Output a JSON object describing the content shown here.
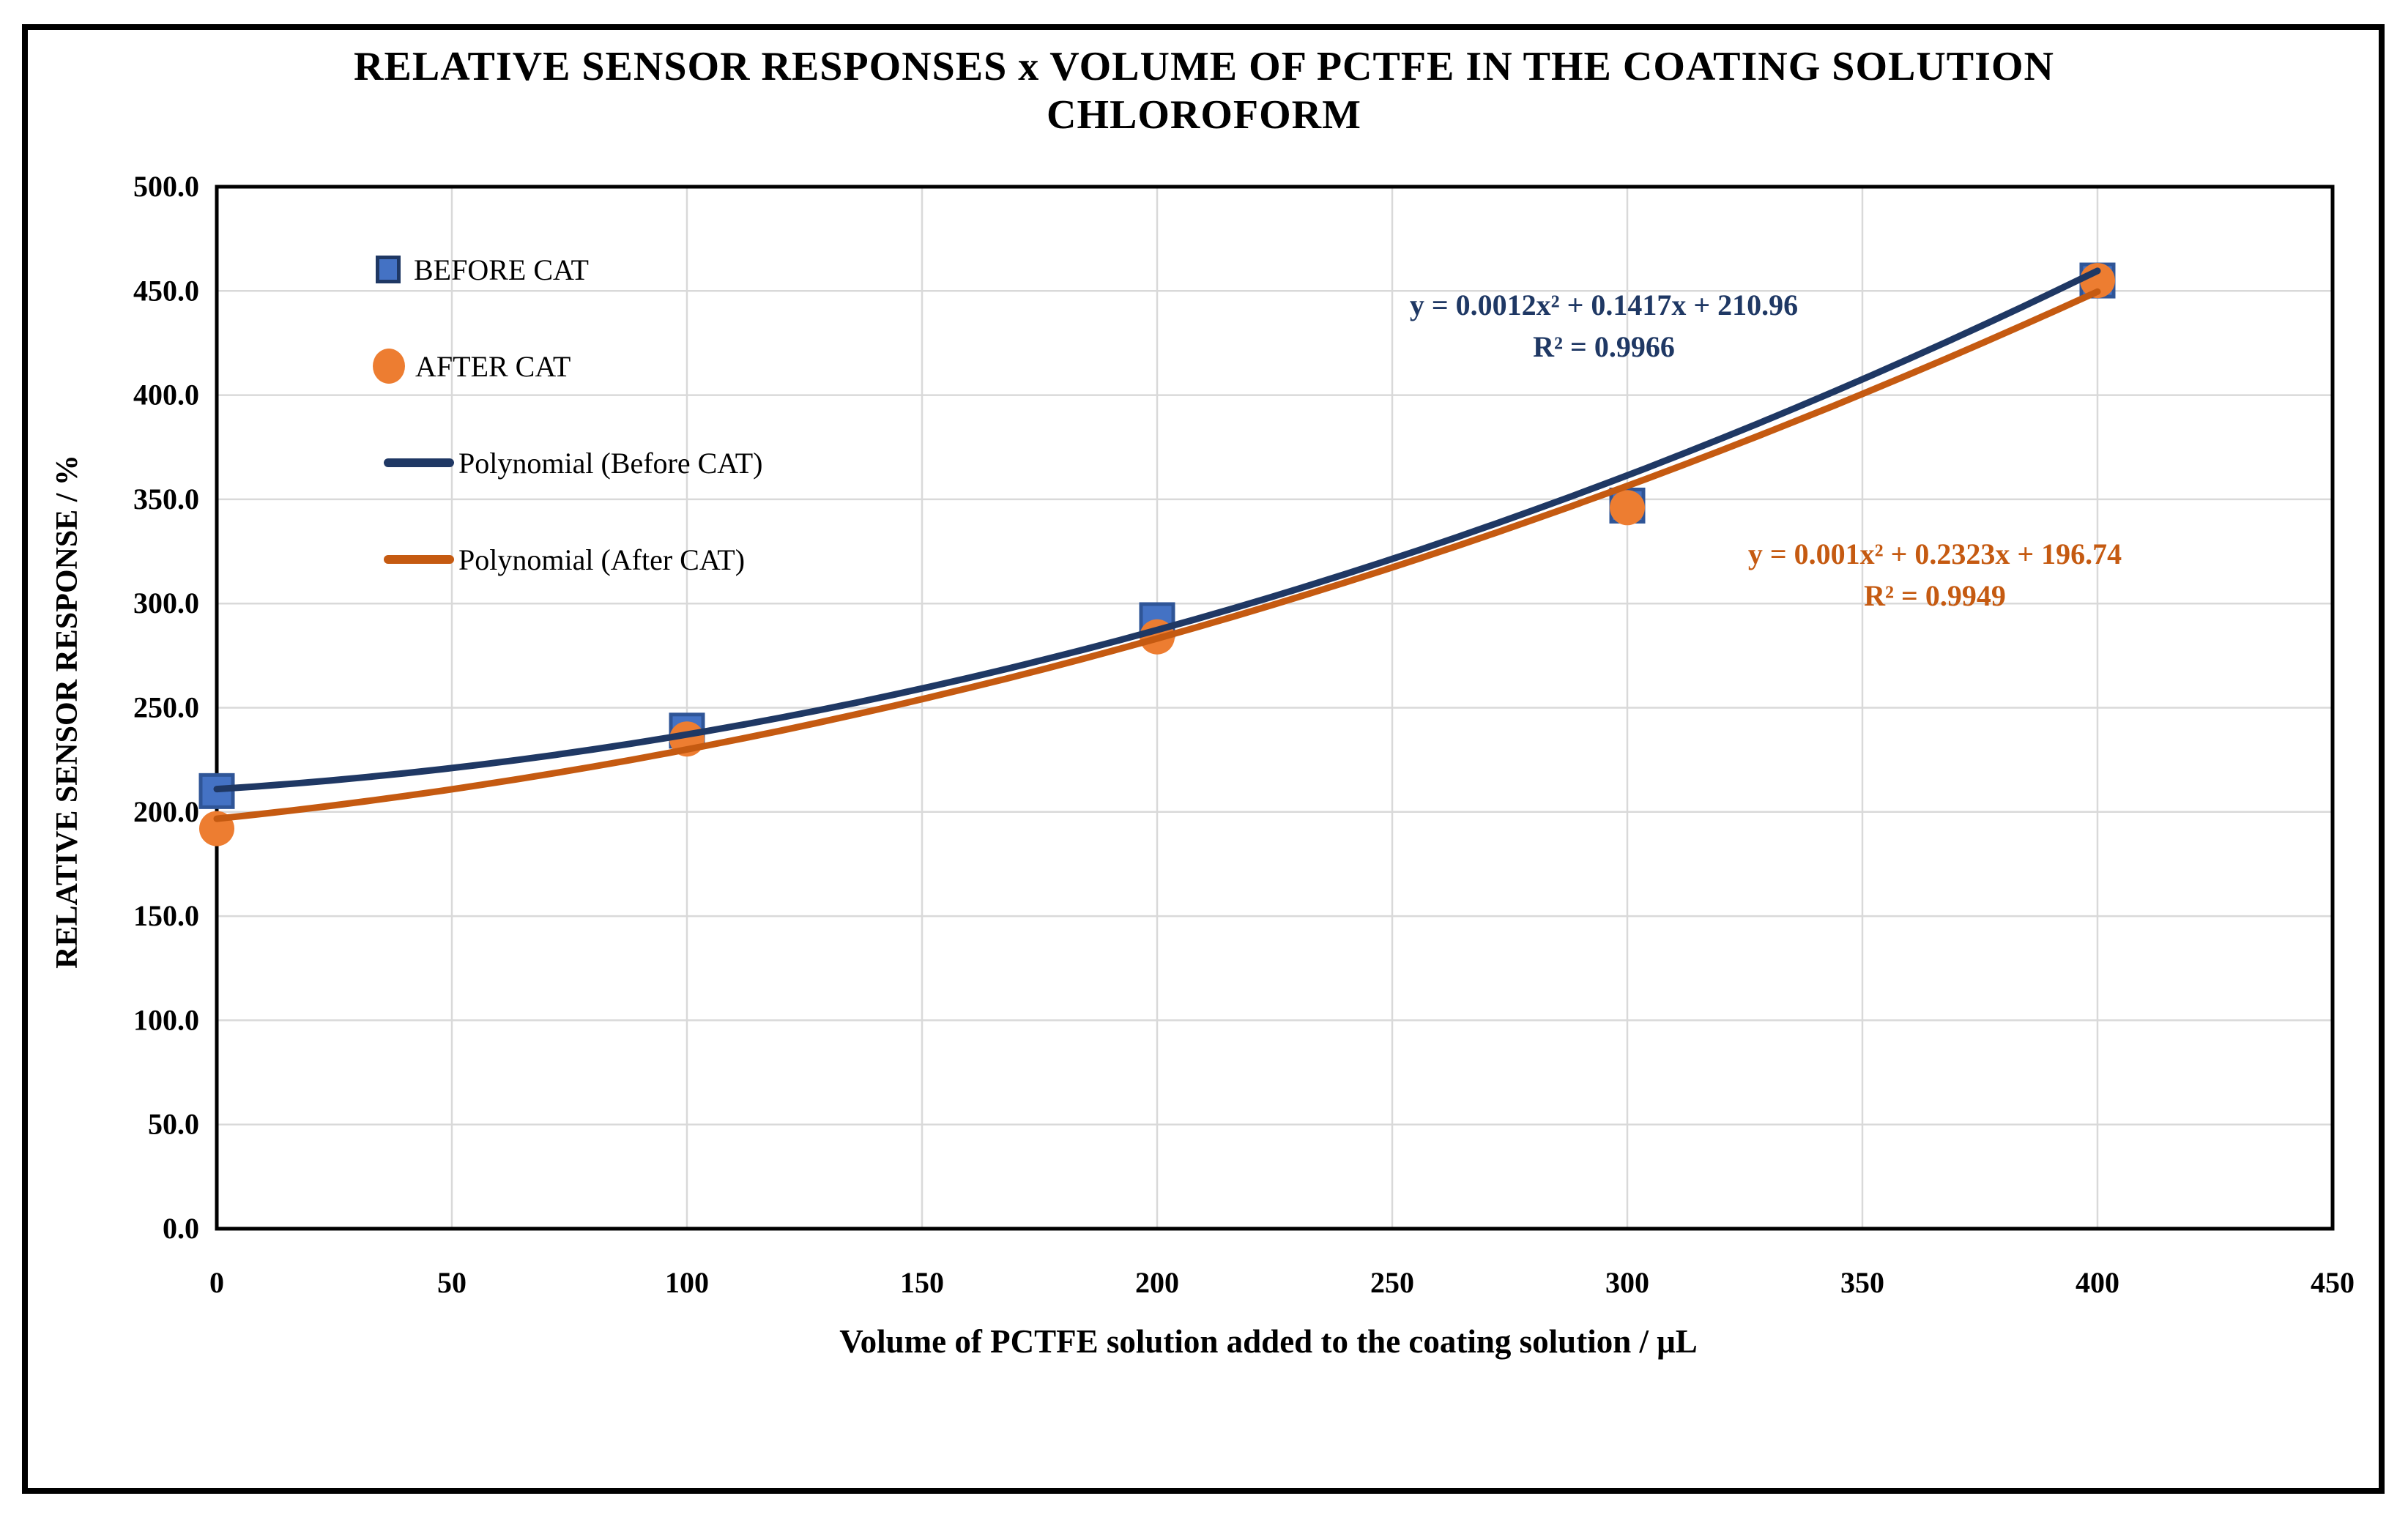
{
  "figure": {
    "title_line1": "RELATIVE SENSOR RESPONSES x VOLUME OF PCTFE IN THE COATING SOLUTION",
    "title_line2": "CHLOROFORM"
  },
  "chart_data": {
    "type": "scatter",
    "title": "RELATIVE SENSOR RESPONSES x VOLUME OF PCTFE IN THE COATING SOLUTION CHLOROFORM",
    "xlabel": "Volume of PCTFE solution added to the coating solution / μL",
    "ylabel": "RELATIVE SENSOR RESPONSE / %",
    "xlim": [
      0,
      450
    ],
    "ylim": [
      0,
      500
    ],
    "grid": true,
    "gridline_color": "#D9D9D9",
    "x_ticks": [
      0,
      50,
      100,
      150,
      200,
      250,
      300,
      350,
      400,
      450
    ],
    "x_tick_labels": [
      "0",
      "50",
      "100",
      "150",
      "200",
      "250",
      "300",
      "350",
      "400",
      "450"
    ],
    "y_ticks": [
      0,
      50,
      100,
      150,
      200,
      250,
      300,
      350,
      400,
      450,
      500
    ],
    "y_tick_labels": [
      "0.0",
      "50.0",
      "100.0",
      "150.0",
      "200.0",
      "250.0",
      "300.0",
      "350.0",
      "400.0",
      "450.0",
      "500.0"
    ],
    "x": [
      0,
      100,
      200,
      300,
      400
    ],
    "series": [
      {
        "name": "BEFORE CAT",
        "marker": "square",
        "color": "#4472C4",
        "border_color": "#2F5597",
        "values": [
          210,
          239,
          292,
          347,
          455
        ]
      },
      {
        "name": "AFTER CAT",
        "marker": "circle",
        "color": "#ED7D31",
        "values": [
          192,
          235,
          284,
          346,
          455
        ]
      }
    ],
    "trendlines": [
      {
        "name": "Polynomial (Before CAT)",
        "color": "#1F3864",
        "a": 0.0012,
        "b": 0.1417,
        "c": 210.96,
        "x_range": [
          0,
          400
        ],
        "equation": "y = 0.0012x² + 0.1417x + 210.96",
        "r2": "R² = 0.9966"
      },
      {
        "name": "Polynomial (After CAT)",
        "color": "#C55A11",
        "a": 0.001,
        "b": 0.2323,
        "c": 196.74,
        "x_range": [
          0,
          400
        ],
        "equation": "y = 0.001x² + 0.2323x + 196.74",
        "r2": "R² = 0.9949"
      }
    ],
    "legend_position": "inside-top-left"
  }
}
